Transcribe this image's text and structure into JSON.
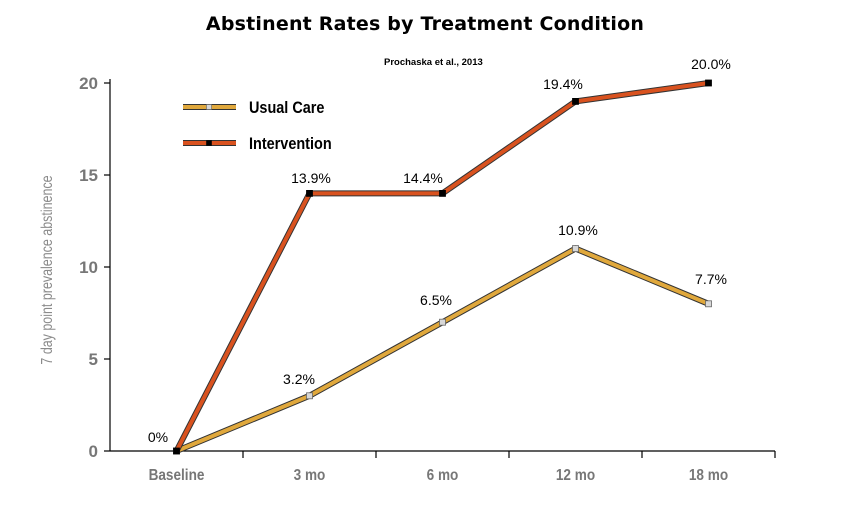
{
  "chart_data": {
    "type": "line",
    "title": "Abstinent Rates by Treatment Condition",
    "subtitle": "Prochaska et al., 2013",
    "ylabel": "7 day point prevalence abstinence",
    "xlabel": "",
    "categories": [
      "Baseline",
      "3 mo",
      "6 mo",
      "12 mo",
      "18 mo"
    ],
    "y_ticks": [
      "0",
      "5",
      "10",
      "15",
      "20"
    ],
    "ylim": [
      0,
      20
    ],
    "grid": false,
    "legend_position": "top-left",
    "series": [
      {
        "name": "Usual Care",
        "values": [
          0,
          3.2,
          6.5,
          10.9,
          7.7
        ],
        "plotted": [
          0,
          3,
          7,
          11,
          8
        ],
        "labels": [
          "0%",
          "3.2%",
          "6.5%",
          "10.9%",
          "7.7%"
        ],
        "color": "#e0a83c",
        "marker_color": "#d8d8d8"
      },
      {
        "name": "Intervention",
        "values": [
          0,
          13.9,
          14.4,
          19.4,
          20.0
        ],
        "plotted": [
          0,
          14,
          14,
          19,
          20
        ],
        "labels": [
          "",
          "13.9%",
          "14.4%",
          "19.4%",
          "20.0%"
        ],
        "color": "#d9521f",
        "marker_color": "#000000"
      }
    ]
  }
}
